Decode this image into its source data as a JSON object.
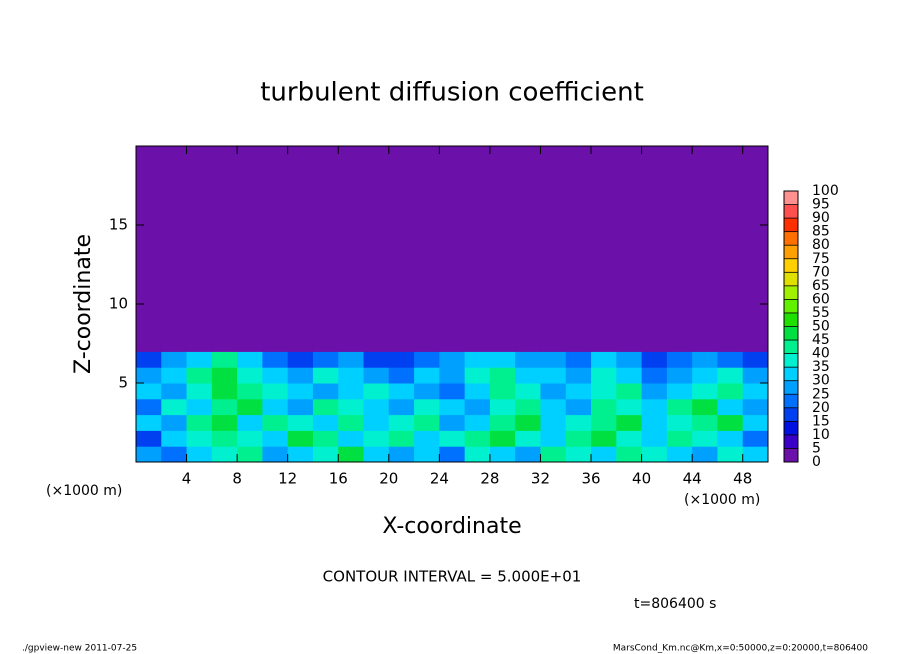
{
  "chart_data": {
    "type": "heatmap",
    "title": "turbulent diffusion coefficient",
    "xlabel": "X-coordinate",
    "ylabel": "Z-coordinate",
    "xunit": "(×1000 m)",
    "note": "CONTOUR INTERVAL = 5.000E+01",
    "time": "t=806400 s",
    "footer_left": "./gpview-new   2011-07-25",
    "footer_right": "MarsCond_Km.nc@Km,x=0:50000,z=0:20000,t=806400",
    "xlim": [
      0,
      50
    ],
    "ylim": [
      0,
      20
    ],
    "xticks": [
      4,
      8,
      12,
      16,
      20,
      24,
      28,
      32,
      36,
      40,
      44,
      48
    ],
    "yticks": [
      5,
      10,
      15
    ],
    "xbins": [
      0,
      2,
      4,
      6,
      8,
      10,
      12,
      14,
      16,
      18,
      20,
      22,
      24,
      26,
      28,
      30,
      32,
      34,
      36,
      38,
      40,
      42,
      44,
      46,
      48,
      50
    ],
    "zbins": [
      0,
      1,
      2,
      3,
      4,
      5,
      6,
      7,
      20
    ],
    "values": [
      [
        25,
        20,
        30,
        35,
        40,
        25,
        30,
        35,
        45,
        30,
        25,
        30,
        20,
        35,
        30,
        25,
        40,
        35,
        30,
        40,
        35,
        30,
        25,
        35,
        30
      ],
      [
        15,
        30,
        35,
        40,
        35,
        30,
        45,
        40,
        30,
        35,
        40,
        30,
        35,
        40,
        45,
        35,
        30,
        40,
        45,
        35,
        30,
        40,
        35,
        30,
        20
      ],
      [
        30,
        25,
        40,
        45,
        30,
        40,
        35,
        30,
        40,
        30,
        35,
        40,
        25,
        30,
        40,
        45,
        30,
        35,
        40,
        45,
        30,
        35,
        40,
        45,
        30
      ],
      [
        20,
        35,
        30,
        40,
        45,
        30,
        25,
        40,
        35,
        30,
        25,
        35,
        30,
        25,
        35,
        40,
        30,
        25,
        40,
        35,
        30,
        40,
        45,
        30,
        25
      ],
      [
        30,
        25,
        35,
        45,
        40,
        35,
        30,
        25,
        30,
        35,
        30,
        25,
        20,
        30,
        40,
        35,
        25,
        30,
        35,
        40,
        25,
        30,
        35,
        40,
        30
      ],
      [
        25,
        30,
        40,
        45,
        35,
        30,
        25,
        35,
        30,
        25,
        20,
        30,
        25,
        35,
        40,
        30,
        30,
        25,
        35,
        30,
        20,
        25,
        30,
        35,
        25
      ],
      [
        15,
        25,
        30,
        40,
        30,
        20,
        15,
        20,
        25,
        15,
        15,
        20,
        25,
        30,
        30,
        25,
        25,
        20,
        30,
        25,
        15,
        20,
        25,
        20,
        15
      ],
      [
        0,
        0,
        0,
        0,
        0,
        0,
        0,
        0,
        0,
        0,
        0,
        0,
        0,
        0,
        0,
        0,
        0,
        0,
        0,
        0,
        0,
        0,
        0,
        0,
        0
      ]
    ],
    "levels": [
      0,
      5,
      10,
      15,
      20,
      25,
      30,
      35,
      40,
      45,
      50,
      55,
      60,
      65,
      70,
      75,
      80,
      85,
      90,
      95,
      100
    ],
    "colors": [
      "#6b10a8",
      "#3a00c8",
      "#0010e0",
      "#0040f0",
      "#0070ff",
      "#00a0ff",
      "#00d0ff",
      "#00f0d0",
      "#00f090",
      "#00e040",
      "#20e000",
      "#60f000",
      "#a0f000",
      "#e0e000",
      "#ffd000",
      "#ffa000",
      "#ff7000",
      "#ff3000",
      "#ff5050",
      "#ff9090"
    ]
  }
}
